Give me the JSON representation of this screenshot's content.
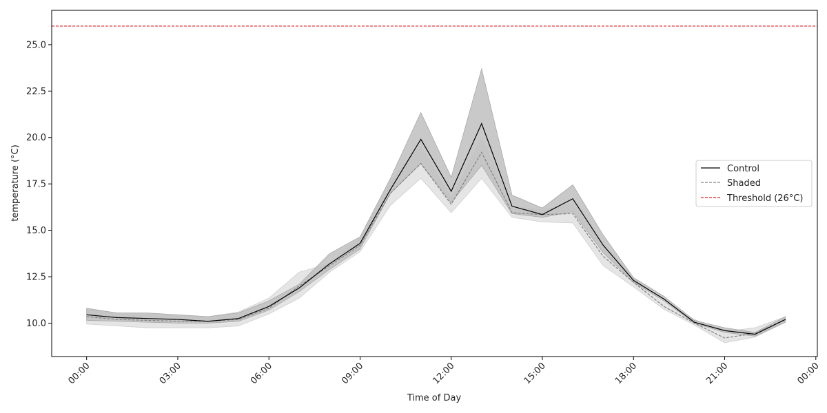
{
  "chart_data": {
    "type": "line",
    "title": "",
    "xlabel": "Time of Day",
    "ylabel": "temperature (°C)",
    "x": [
      "00:00",
      "01:00",
      "02:00",
      "03:00",
      "04:00",
      "05:00",
      "06:00",
      "07:00",
      "08:00",
      "09:00",
      "10:00",
      "11:00",
      "12:00",
      "13:00",
      "14:00",
      "15:00",
      "16:00",
      "17:00",
      "18:00",
      "19:00",
      "20:00",
      "21:00",
      "22:00",
      "23:00"
    ],
    "x_ticks": [
      "00:00",
      "03:00",
      "06:00",
      "09:00",
      "12:00",
      "15:00",
      "18:00",
      "21:00",
      "00:00"
    ],
    "y_ticks": [
      "10.0",
      "12.5",
      "15.0",
      "17.5",
      "20.0",
      "22.5",
      "25.0"
    ],
    "xlim_hours": [
      -1.15,
      24.05
    ],
    "ylim": [
      8.2,
      26.85
    ],
    "grid": false,
    "legend_position": "center-right",
    "series": [
      {
        "name": "Control",
        "style": "solid",
        "color": "#000000",
        "band_color": "#bfbfbf",
        "values": [
          10.45,
          10.3,
          10.25,
          10.2,
          10.1,
          10.25,
          10.9,
          11.9,
          13.2,
          14.3,
          17.2,
          19.9,
          17.1,
          20.75,
          16.3,
          15.85,
          16.7,
          14.2,
          12.3,
          11.3,
          10.05,
          9.6,
          9.4,
          10.2
        ],
        "lower": [
          10.15,
          10.1,
          10.05,
          10.0,
          10.0,
          10.1,
          10.7,
          11.7,
          12.9,
          14.0,
          17.0,
          18.6,
          16.5,
          18.5,
          15.9,
          15.7,
          16.0,
          13.8,
          12.2,
          11.2,
          10.0,
          9.5,
          9.3,
          10.05
        ],
        "upper": [
          10.8,
          10.55,
          10.55,
          10.45,
          10.35,
          10.55,
          11.2,
          12.1,
          13.75,
          14.65,
          17.8,
          21.35,
          17.85,
          23.7,
          16.9,
          16.2,
          17.45,
          14.75,
          12.45,
          11.45,
          10.15,
          9.75,
          9.5,
          10.35
        ]
      },
      {
        "name": "Shaded",
        "style": "dashed",
        "color": "#808080",
        "band_color": "#dcdcdc",
        "values": [
          10.35,
          10.2,
          10.15,
          10.1,
          10.1,
          10.2,
          10.8,
          12.0,
          13.1,
          14.2,
          17.0,
          18.6,
          16.4,
          19.2,
          15.95,
          15.85,
          15.9,
          13.6,
          12.2,
          10.9,
          10.0,
          9.2,
          9.45,
          10.2
        ],
        "lower": [
          9.95,
          9.85,
          9.75,
          9.75,
          9.75,
          9.85,
          10.5,
          11.35,
          12.75,
          13.85,
          16.35,
          17.8,
          15.95,
          17.8,
          15.7,
          15.45,
          15.4,
          13.1,
          11.95,
          10.75,
          9.9,
          8.95,
          9.25,
          10.05
        ],
        "upper": [
          10.75,
          10.55,
          10.5,
          10.4,
          10.35,
          10.6,
          11.35,
          12.75,
          13.2,
          14.6,
          17.65,
          19.55,
          16.7,
          20.0,
          16.3,
          16.1,
          16.4,
          14.2,
          12.4,
          11.2,
          10.2,
          9.55,
          9.75,
          10.35
        ]
      }
    ],
    "threshold": {
      "name": "Threshold (26°C)",
      "value": 26.0,
      "color": "#e41a1c",
      "style": "dashed"
    }
  }
}
